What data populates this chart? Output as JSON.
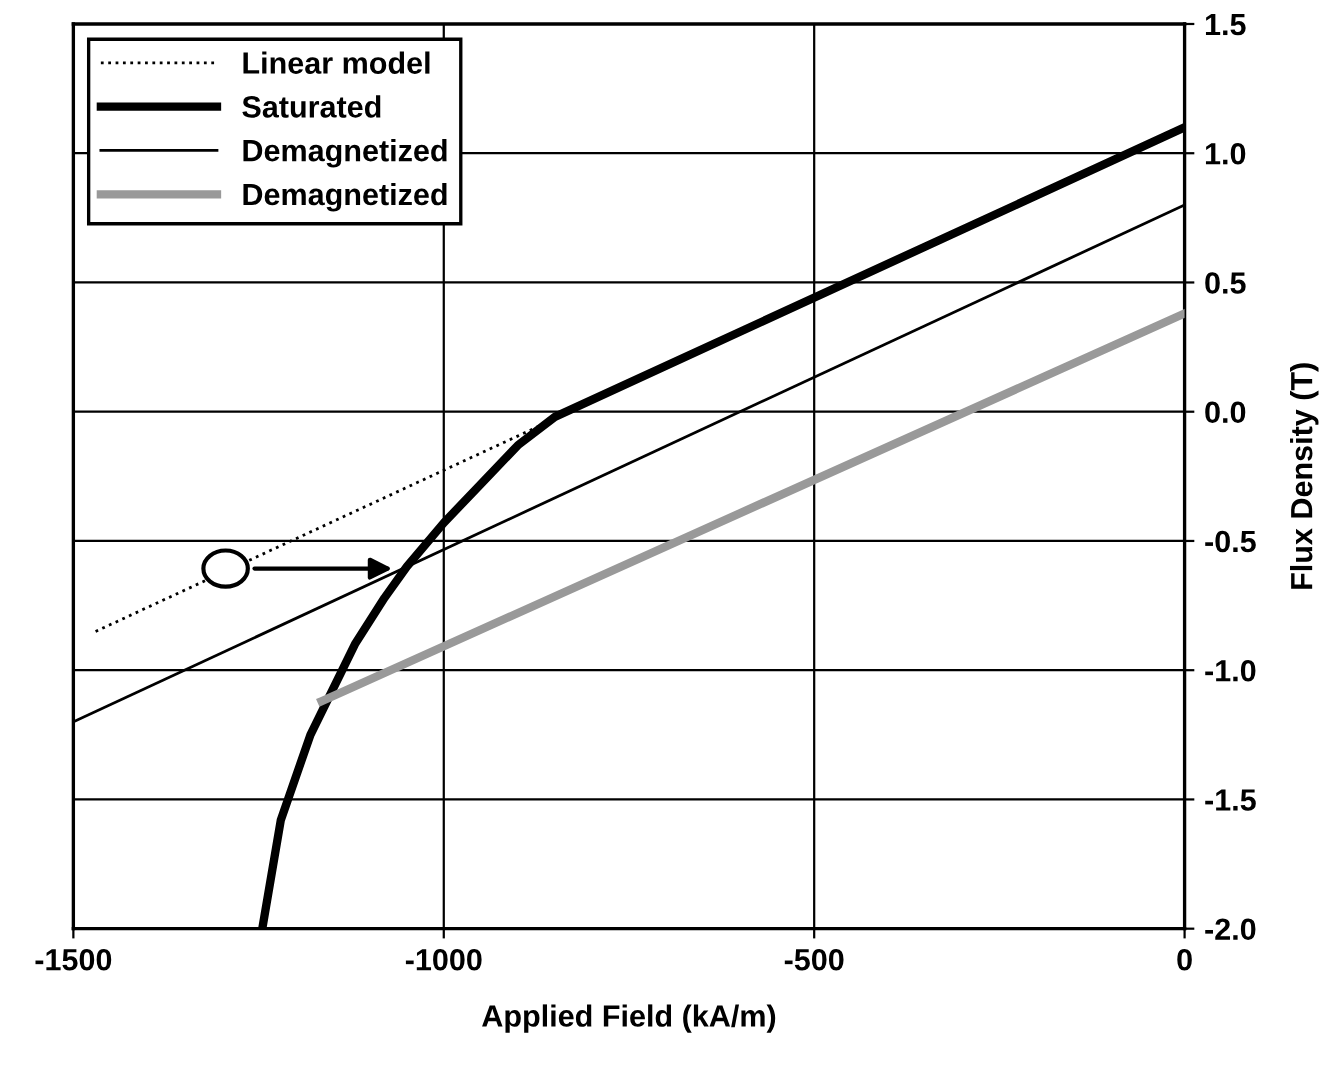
{
  "chart_data": {
    "type": "line",
    "xlabel": "Applied Field (kA/m)",
    "ylabel": "Flux Density (T)",
    "xlim": [
      -1500,
      0
    ],
    "xticks": [
      -1500,
      -1000,
      -500,
      0
    ],
    "ylim": [
      -2.0,
      1.5
    ],
    "yticks": [
      {
        "value": -2.0,
        "label": "-2.0"
      },
      {
        "value": -1.5,
        "label": "-1.5"
      },
      {
        "value": -1.0,
        "label": "-1.0"
      },
      {
        "value": -0.5,
        "label": "-0.5"
      },
      {
        "value": 0.0,
        "label": "0.0"
      },
      {
        "value": 0.5,
        "label": "0.5"
      },
      {
        "value": 1.0,
        "label": "1.0"
      },
      {
        "value": 1.5,
        "label": "1.5"
      }
    ],
    "grid": true,
    "legend": "top left",
    "series": [
      {
        "name": "Linear model",
        "color": "#000000",
        "line_style": "dotted",
        "x": [
          -1470,
          0
        ],
        "values": [
          -0.85,
          1.1
        ]
      },
      {
        "name": "Saturated",
        "color": "#000000",
        "x": [
          -1245,
          -1220,
          -1180,
          -1120,
          -1080,
          -1050,
          -1000,
          -950,
          -900,
          -850,
          0
        ],
        "values": [
          -2.0,
          -1.58,
          -1.25,
          -0.9,
          -0.72,
          -0.6,
          -0.43,
          -0.28,
          -0.13,
          -0.02,
          1.1
        ]
      },
      {
        "name": "Demagnetized",
        "color": "#000000",
        "x": [
          -1500,
          0
        ],
        "values": [
          -1.2,
          0.8
        ]
      },
      {
        "name": "Demagnetized",
        "color": "#999999",
        "x": [
          -1165,
          0
        ],
        "values": [
          -1.12,
          0.38
        ]
      }
    ]
  }
}
